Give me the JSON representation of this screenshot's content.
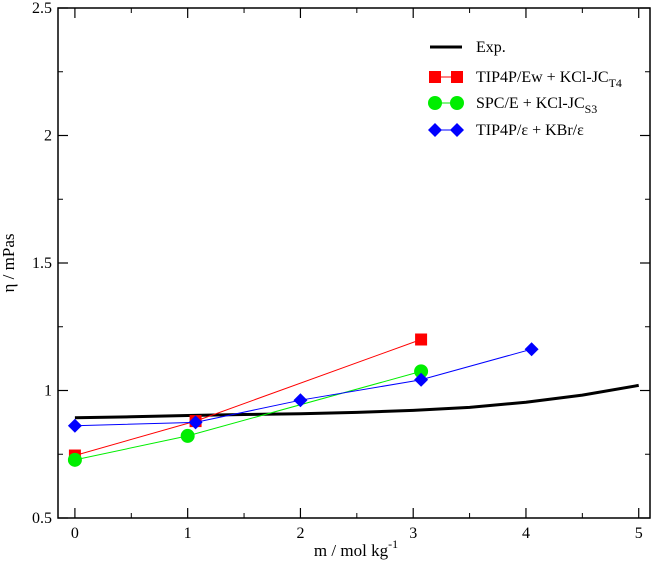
{
  "chart_data": {
    "type": "line",
    "title": "",
    "xlabel": "m  /  mol kg",
    "xlabel_sup": "-1",
    "ylabel": "η  / mPas",
    "xlim": [
      -0.15,
      5.1
    ],
    "ylim": [
      0.5,
      2.5
    ],
    "grid": false,
    "legend_position": "top-right",
    "x_ticks": [
      0,
      1,
      2,
      3,
      4,
      5
    ],
    "x_tick_labels": [
      "0",
      "1",
      "2",
      "3",
      "4",
      "5"
    ],
    "x_minor_ticks": [
      0.5,
      1.5,
      2.5,
      3.5,
      4.5
    ],
    "y_ticks": [
      0.5,
      1,
      1.5,
      2,
      2.5
    ],
    "y_tick_labels": [
      "0.5",
      "1",
      "1.5",
      "2",
      "2.5"
    ],
    "y_minor_ticks": [
      0.75,
      1.25,
      1.75,
      2.25
    ],
    "series": [
      {
        "name": "Exp.",
        "label_main": "Exp.",
        "label_sub": "",
        "color": "#000000",
        "marker": "none",
        "line_width": 3,
        "x": [
          0,
          0.5,
          1,
          1.5,
          2,
          2.5,
          3,
          3.5,
          4,
          4.5,
          5
        ],
        "y": [
          0.893,
          0.897,
          0.902,
          0.906,
          0.909,
          0.914,
          0.922,
          0.934,
          0.954,
          0.982,
          1.02
        ]
      },
      {
        "name": "TIP4P/Ew + KCl-JC T4",
        "label_main": "TIP4P/Ew + KCl-JC",
        "label_sub": "T4",
        "color": "#ff0000",
        "marker": "square",
        "line_width": 1,
        "x": [
          0,
          1.07,
          3.07
        ],
        "y": [
          0.745,
          0.88,
          1.2
        ]
      },
      {
        "name": "SPC/E + KCl-JC S3",
        "label_main": "SPC/E + KCl-JC",
        "label_sub": "S3",
        "color": "#00ee00",
        "marker": "circle",
        "line_width": 1,
        "x": [
          0,
          1,
          3.07
        ],
        "y": [
          0.728,
          0.822,
          1.075
        ]
      },
      {
        "name": "TIP4P/ε + KBr/ε",
        "label_main": "TIP4P/ε + KBr/ε",
        "label_sub": "",
        "color": "#0000ff",
        "marker": "diamond",
        "line_width": 1,
        "x": [
          0,
          1.07,
          2,
          3.07,
          4.05
        ],
        "y": [
          0.862,
          0.875,
          0.962,
          1.042,
          1.162
        ]
      }
    ]
  }
}
